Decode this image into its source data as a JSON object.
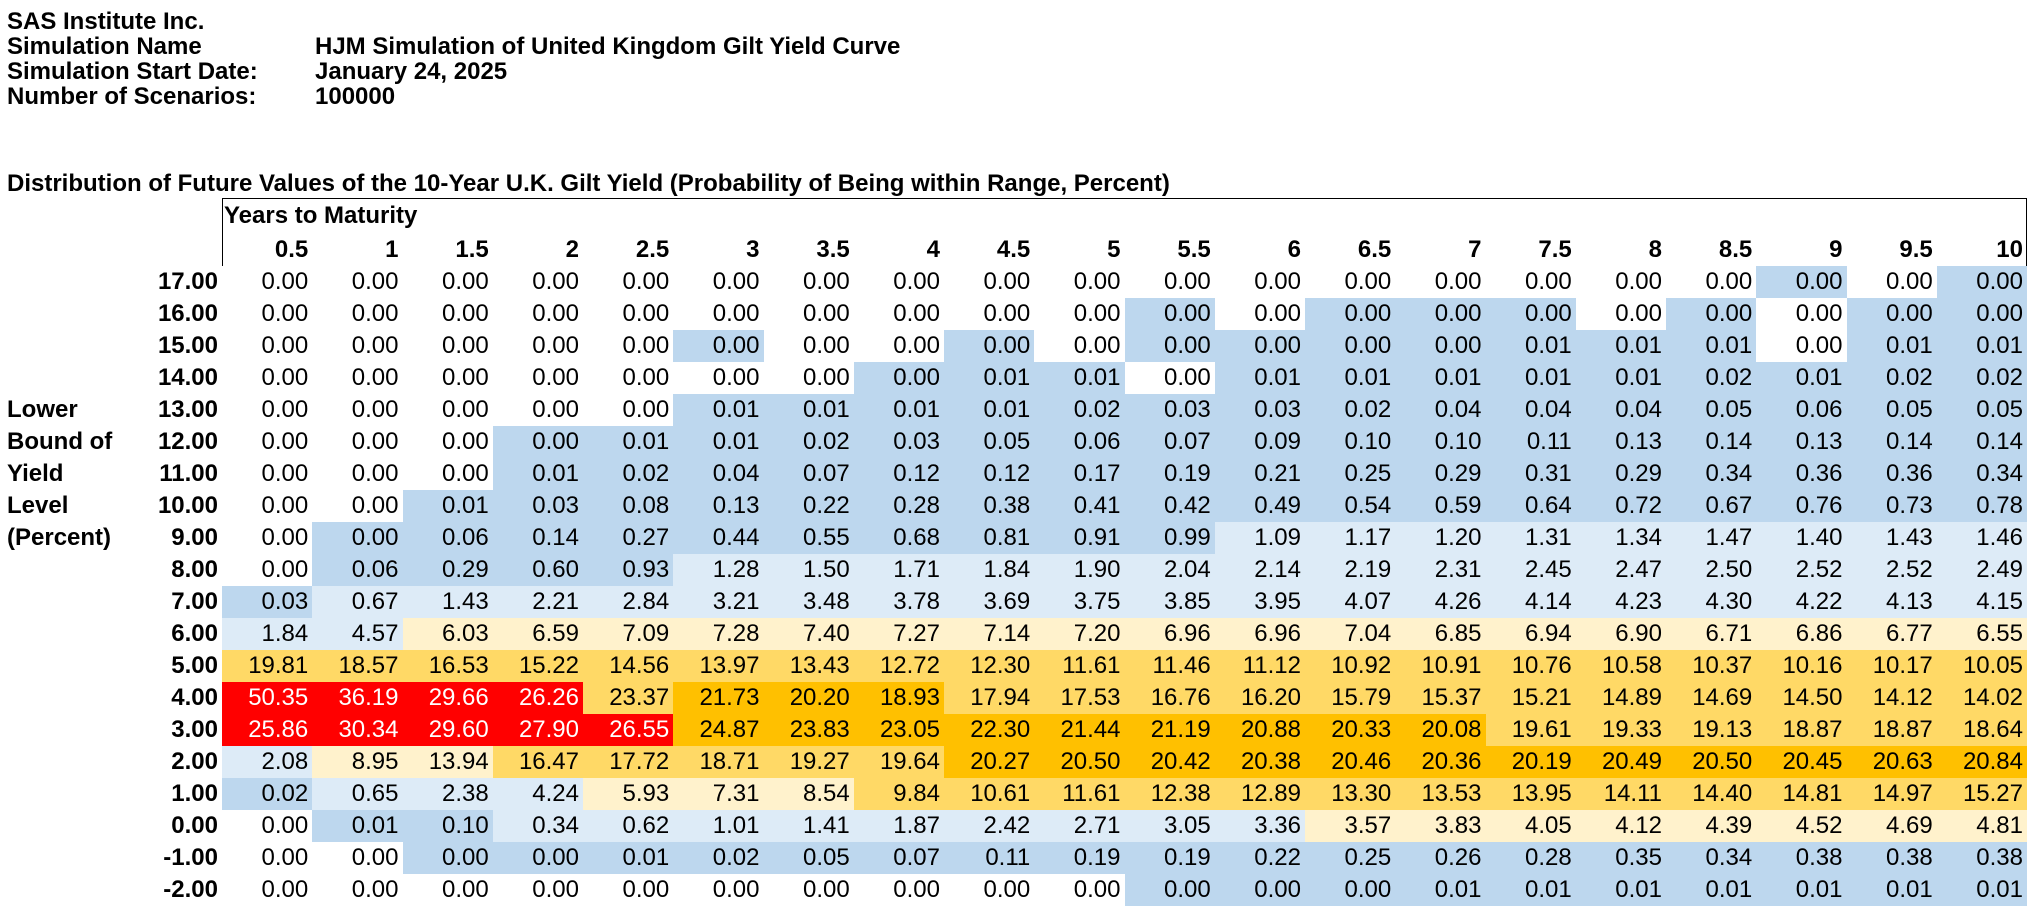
{
  "header": {
    "company": "SAS Institute Inc.",
    "fields": [
      {
        "label": "Simulation Name",
        "value": "HJM Simulation of United Kingdom Gilt Yield Curve"
      },
      {
        "label": "Simulation Start Date:",
        "value": "January 24, 2025"
      },
      {
        "label": "Number of Scenarios:",
        "value": "100000"
      }
    ]
  },
  "table": {
    "title": "Distribution of Future Values of the 10-Year U.K. Gilt Yield (Probability of Being within Range, Percent)",
    "column_group_label": "Years to Maturity",
    "row_axis_label": [
      "Lower",
      "Bound of",
      "Yield",
      "Level",
      "(Percent)"
    ],
    "columns": [
      "0.5",
      "1",
      "1.5",
      "2",
      "2.5",
      "3",
      "3.5",
      "4",
      "4.5",
      "5",
      "5.5",
      "6",
      "6.5",
      "7",
      "7.5",
      "8",
      "8.5",
      "9",
      "9.5",
      "10"
    ],
    "rows": [
      {
        "label": "17.00",
        "values": [
          "0.00",
          "0.00",
          "0.00",
          "0.00",
          "0.00",
          "0.00",
          "0.00",
          "0.00",
          "0.00",
          "0.00",
          "0.00",
          "0.00",
          "0.00",
          "0.00",
          "0.00",
          "0.00",
          "0.00",
          "0.00",
          "0.00",
          "0.00"
        ]
      },
      {
        "label": "16.00",
        "values": [
          "0.00",
          "0.00",
          "0.00",
          "0.00",
          "0.00",
          "0.00",
          "0.00",
          "0.00",
          "0.00",
          "0.00",
          "0.00",
          "0.00",
          "0.00",
          "0.00",
          "0.00",
          "0.00",
          "0.00",
          "0.00",
          "0.00",
          "0.00"
        ]
      },
      {
        "label": "15.00",
        "values": [
          "0.00",
          "0.00",
          "0.00",
          "0.00",
          "0.00",
          "0.00",
          "0.00",
          "0.00",
          "0.00",
          "0.00",
          "0.00",
          "0.00",
          "0.00",
          "0.00",
          "0.01",
          "0.01",
          "0.01",
          "0.00",
          "0.01",
          "0.01"
        ]
      },
      {
        "label": "14.00",
        "values": [
          "0.00",
          "0.00",
          "0.00",
          "0.00",
          "0.00",
          "0.00",
          "0.00",
          "0.00",
          "0.01",
          "0.01",
          "0.00",
          "0.01",
          "0.01",
          "0.01",
          "0.01",
          "0.01",
          "0.02",
          "0.01",
          "0.02",
          "0.02"
        ]
      },
      {
        "label": "13.00",
        "values": [
          "0.00",
          "0.00",
          "0.00",
          "0.00",
          "0.00",
          "0.01",
          "0.01",
          "0.01",
          "0.01",
          "0.02",
          "0.03",
          "0.03",
          "0.02",
          "0.04",
          "0.04",
          "0.04",
          "0.05",
          "0.06",
          "0.05",
          "0.05"
        ]
      },
      {
        "label": "12.00",
        "values": [
          "0.00",
          "0.00",
          "0.00",
          "0.00",
          "0.01",
          "0.01",
          "0.02",
          "0.03",
          "0.05",
          "0.06",
          "0.07",
          "0.09",
          "0.10",
          "0.10",
          "0.11",
          "0.13",
          "0.14",
          "0.13",
          "0.14",
          "0.14"
        ]
      },
      {
        "label": "11.00",
        "values": [
          "0.00",
          "0.00",
          "0.00",
          "0.01",
          "0.02",
          "0.04",
          "0.07",
          "0.12",
          "0.12",
          "0.17",
          "0.19",
          "0.21",
          "0.25",
          "0.29",
          "0.31",
          "0.29",
          "0.34",
          "0.36",
          "0.36",
          "0.34"
        ]
      },
      {
        "label": "10.00",
        "values": [
          "0.00",
          "0.00",
          "0.01",
          "0.03",
          "0.08",
          "0.13",
          "0.22",
          "0.28",
          "0.38",
          "0.41",
          "0.42",
          "0.49",
          "0.54",
          "0.59",
          "0.64",
          "0.72",
          "0.67",
          "0.76",
          "0.73",
          "0.78"
        ]
      },
      {
        "label": "9.00",
        "values": [
          "0.00",
          "0.00",
          "0.06",
          "0.14",
          "0.27",
          "0.44",
          "0.55",
          "0.68",
          "0.81",
          "0.91",
          "0.99",
          "1.09",
          "1.17",
          "1.20",
          "1.31",
          "1.34",
          "1.47",
          "1.40",
          "1.43",
          "1.46"
        ]
      },
      {
        "label": "8.00",
        "values": [
          "0.00",
          "0.06",
          "0.29",
          "0.60",
          "0.93",
          "1.28",
          "1.50",
          "1.71",
          "1.84",
          "1.90",
          "2.04",
          "2.14",
          "2.19",
          "2.31",
          "2.45",
          "2.47",
          "2.50",
          "2.52",
          "2.52",
          "2.49"
        ]
      },
      {
        "label": "7.00",
        "values": [
          "0.03",
          "0.67",
          "1.43",
          "2.21",
          "2.84",
          "3.21",
          "3.48",
          "3.78",
          "3.69",
          "3.75",
          "3.85",
          "3.95",
          "4.07",
          "4.26",
          "4.14",
          "4.23",
          "4.30",
          "4.22",
          "4.13",
          "4.15"
        ]
      },
      {
        "label": "6.00",
        "values": [
          "1.84",
          "4.57",
          "6.03",
          "6.59",
          "7.09",
          "7.28",
          "7.40",
          "7.27",
          "7.14",
          "7.20",
          "6.96",
          "6.96",
          "7.04",
          "6.85",
          "6.94",
          "6.90",
          "6.71",
          "6.86",
          "6.77",
          "6.55"
        ]
      },
      {
        "label": "5.00",
        "values": [
          "19.81",
          "18.57",
          "16.53",
          "15.22",
          "14.56",
          "13.97",
          "13.43",
          "12.72",
          "12.30",
          "11.61",
          "11.46",
          "11.12",
          "10.92",
          "10.91",
          "10.76",
          "10.58",
          "10.37",
          "10.16",
          "10.17",
          "10.05"
        ]
      },
      {
        "label": "4.00",
        "values": [
          "50.35",
          "36.19",
          "29.66",
          "26.26",
          "23.37",
          "21.73",
          "20.20",
          "18.93",
          "17.94",
          "17.53",
          "16.76",
          "16.20",
          "15.79",
          "15.37",
          "15.21",
          "14.89",
          "14.69",
          "14.50",
          "14.12",
          "14.02"
        ]
      },
      {
        "label": "3.00",
        "values": [
          "25.86",
          "30.34",
          "29.60",
          "27.90",
          "26.55",
          "24.87",
          "23.83",
          "23.05",
          "22.30",
          "21.44",
          "21.19",
          "20.88",
          "20.33",
          "20.08",
          "19.61",
          "19.33",
          "19.13",
          "18.87",
          "18.87",
          "18.64"
        ]
      },
      {
        "label": "2.00",
        "values": [
          "2.08",
          "8.95",
          "13.94",
          "16.47",
          "17.72",
          "18.71",
          "19.27",
          "19.64",
          "20.27",
          "20.50",
          "20.42",
          "20.38",
          "20.46",
          "20.36",
          "20.19",
          "20.49",
          "20.50",
          "20.45",
          "20.63",
          "20.84"
        ]
      },
      {
        "label": "1.00",
        "values": [
          "0.02",
          "0.65",
          "2.38",
          "4.24",
          "5.93",
          "7.31",
          "8.54",
          "9.84",
          "10.61",
          "11.61",
          "12.38",
          "12.89",
          "13.30",
          "13.53",
          "13.95",
          "14.11",
          "14.40",
          "14.81",
          "14.97",
          "15.27"
        ]
      },
      {
        "label": "0.00",
        "values": [
          "0.00",
          "0.01",
          "0.10",
          "0.34",
          "0.62",
          "1.01",
          "1.41",
          "1.87",
          "2.42",
          "2.71",
          "3.05",
          "3.36",
          "3.57",
          "3.83",
          "4.05",
          "4.12",
          "4.39",
          "4.52",
          "4.69",
          "4.81"
        ]
      },
      {
        "label": "-1.00",
        "values": [
          "0.00",
          "0.00",
          "0.00",
          "0.00",
          "0.01",
          "0.02",
          "0.05",
          "0.07",
          "0.11",
          "0.19",
          "0.19",
          "0.22",
          "0.25",
          "0.26",
          "0.28",
          "0.35",
          "0.34",
          "0.38",
          "0.38",
          "0.38"
        ]
      },
      {
        "label": "-2.00",
        "values": [
          "0.00",
          "0.00",
          "0.00",
          "0.00",
          "0.00",
          "0.00",
          "0.00",
          "0.00",
          "0.00",
          "0.00",
          "0.00",
          "0.00",
          "0.00",
          "0.01",
          "0.01",
          "0.01",
          "0.01",
          "0.01",
          "0.01",
          "0.01"
        ]
      }
    ],
    "cell_shading": [
      "WWWWWWWWWWWWWWWWWBWB",
      "WWWWWWWWWWBWBBBWBWBB",
      "WWWWWBWWBWBBBBBBBWBB",
      "WWWWWWWBBBWBBBBBBBBB",
      "WWWWWBBBBBBBBBBBBBBB",
      "WWWBBBBBBBBBBBBBBBBB",
      "WWWBBBBBBBBBBBBBBBBB",
      "WWBBBBBBBBBBBBBBBBBB",
      "WBBBBBBBBBBLLLLLLLLL",
      "WBBBBLLLLLLLLLLLLLLL",
      "BLLLLLLLLLLLLLLLLLLL",
      "LLYYYYYYYYYYYYYYYYYY",
      "OOOOOOOOOOOOOOOOOOOO",
      "RRRRODDDOOOOOOOOOOOO",
      "RRRRRDDDDDDDDDOOOOOO",
      "LYYOOOOODDDDDDDDDDDD",
      "BLLLYYYOOOOOOOOOOOOO",
      "WBBLLLLLLLLLYYYYYYYY",
      "WWBBBBBBBBBBBBBBBBBB",
      "WWWWWWWWWWBBBBBBBBBB"
    ],
    "shade_colors": {
      "W": "#ffffff",
      "B": "#bdd7ee",
      "L": "#ddebf7",
      "Y": "#fff2cc",
      "O": "#ffd966",
      "D": "#ffc000",
      "R": "#ff0000"
    }
  }
}
